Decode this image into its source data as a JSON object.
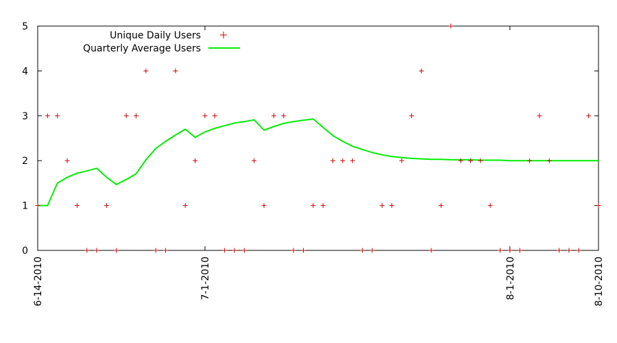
{
  "chart_data": {
    "type": "line",
    "title": "",
    "xlabel": "",
    "ylabel": "",
    "ylim": [
      0,
      5
    ],
    "yticks": [
      0,
      1,
      2,
      3,
      4,
      5
    ],
    "xlim": [
      "2010-06-14",
      "2010-08-10"
    ],
    "xticks": [
      {
        "date": "2010-06-14",
        "label": "6-14-2010"
      },
      {
        "date": "2010-07-01",
        "label": "7-1-2010"
      },
      {
        "date": "2010-08-01",
        "label": "8-1-2010"
      },
      {
        "date": "2010-08-10",
        "label": "8-10-2010"
      }
    ],
    "grid": false,
    "legend": "top-left",
    "colors": {
      "points": "#cc0000",
      "average": "#00ee00",
      "axes": "#000000"
    },
    "series": [
      {
        "name": "Unique Daily Users",
        "style": "points",
        "x": [
          "2010-06-14",
          "2010-06-15",
          "2010-06-16",
          "2010-06-17",
          "2010-06-18",
          "2010-06-19",
          "2010-06-20",
          "2010-06-21",
          "2010-06-22",
          "2010-06-23",
          "2010-06-24",
          "2010-06-25",
          "2010-06-26",
          "2010-06-27",
          "2010-06-28",
          "2010-06-29",
          "2010-06-30",
          "2010-07-01",
          "2010-07-02",
          "2010-07-03",
          "2010-07-04",
          "2010-07-05",
          "2010-07-06",
          "2010-07-07",
          "2010-07-08",
          "2010-07-09",
          "2010-07-10",
          "2010-07-11",
          "2010-07-12",
          "2010-07-13",
          "2010-07-14",
          "2010-07-15",
          "2010-07-16",
          "2010-07-17",
          "2010-07-18",
          "2010-07-19",
          "2010-07-20",
          "2010-07-21",
          "2010-07-22",
          "2010-07-23",
          "2010-07-24",
          "2010-07-25",
          "2010-07-26",
          "2010-07-27",
          "2010-07-28",
          "2010-07-29",
          "2010-07-30",
          "2010-07-31",
          "2010-08-01",
          "2010-08-02",
          "2010-08-03",
          "2010-08-04",
          "2010-08-05",
          "2010-08-06",
          "2010-08-07",
          "2010-08-08",
          "2010-08-09",
          "2010-08-10"
        ],
        "values": [
          1,
          3,
          3,
          2,
          1,
          0,
          0,
          1,
          0,
          3,
          3,
          4,
          0,
          0,
          4,
          1,
          2,
          3,
          3,
          0,
          0,
          0,
          2,
          1,
          3,
          3,
          0,
          0,
          1,
          1,
          2,
          2,
          2,
          0,
          0,
          1,
          1,
          2,
          3,
          4,
          0,
          1,
          5,
          2,
          2,
          2,
          1,
          0,
          0,
          0,
          2,
          3,
          2,
          0,
          0,
          0,
          3,
          1
        ]
      },
      {
        "name": "Quarterly Average Users",
        "style": "line",
        "x": [
          "2010-06-14",
          "2010-06-15",
          "2010-06-16",
          "2010-06-17",
          "2010-06-18",
          "2010-06-19",
          "2010-06-20",
          "2010-06-21",
          "2010-06-22",
          "2010-06-23",
          "2010-06-24",
          "2010-06-25",
          "2010-06-26",
          "2010-06-27",
          "2010-06-28",
          "2010-06-29",
          "2010-06-30",
          "2010-07-01",
          "2010-07-02",
          "2010-07-03",
          "2010-07-04",
          "2010-07-05",
          "2010-07-06",
          "2010-07-07",
          "2010-07-08",
          "2010-07-09",
          "2010-07-10",
          "2010-07-11",
          "2010-07-12",
          "2010-07-13",
          "2010-07-14",
          "2010-07-15",
          "2010-07-16",
          "2010-07-17",
          "2010-07-18",
          "2010-07-19",
          "2010-07-20",
          "2010-07-21",
          "2010-07-22",
          "2010-07-23",
          "2010-07-24",
          "2010-07-25",
          "2010-07-26",
          "2010-07-27",
          "2010-07-28",
          "2010-07-29",
          "2010-07-30",
          "2010-07-31",
          "2010-08-01",
          "2010-08-02",
          "2010-08-03",
          "2010-08-04",
          "2010-08-05",
          "2010-08-06",
          "2010-08-07",
          "2010-08-08",
          "2010-08-09",
          "2010-08-10"
        ],
        "values": [
          1,
          1,
          1.5,
          1.63,
          1.72,
          1.77,
          1.83,
          1.63,
          1.47,
          1.58,
          1.71,
          2.02,
          2.27,
          2.43,
          2.57,
          2.7,
          2.52,
          2.64,
          2.72,
          2.78,
          2.84,
          2.87,
          2.91,
          2.68,
          2.76,
          2.83,
          2.87,
          2.9,
          2.93,
          2.74,
          2.56,
          2.43,
          2.32,
          2.25,
          2.18,
          2.13,
          2.09,
          2.07,
          2.05,
          2.04,
          2.03,
          2.03,
          2.02,
          2.02,
          2.02,
          2.01,
          2.01,
          2.01,
          2.0,
          2.0,
          2.0,
          2.0,
          2.0,
          2.0,
          2.0,
          2.0,
          2.0,
          2.0
        ]
      }
    ]
  }
}
